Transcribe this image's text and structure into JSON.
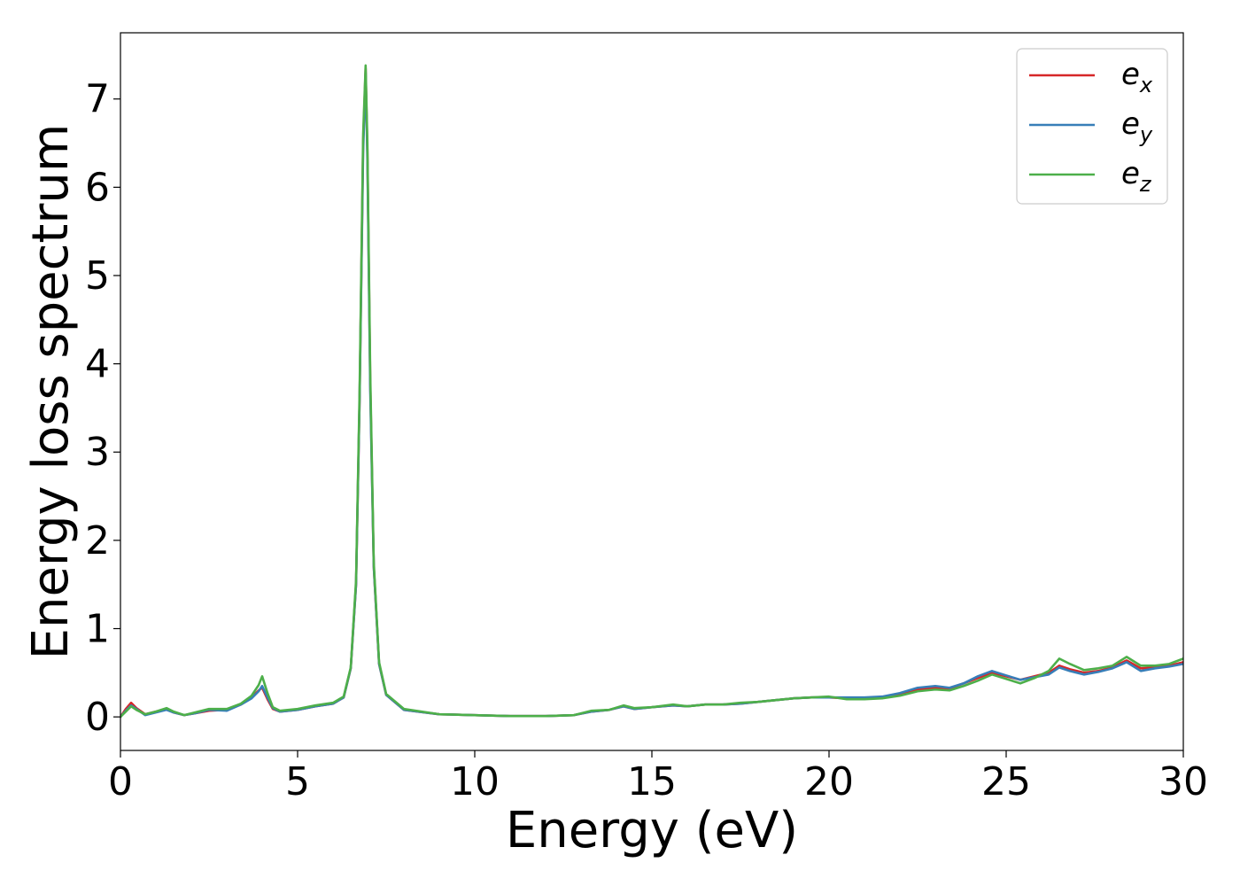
{
  "chart_data": {
    "type": "line",
    "xlabel": "Energy (eV)",
    "ylabel": "Energy loss spectrum",
    "xlim": [
      0,
      30
    ],
    "ylim": [
      -0.38,
      7.75
    ],
    "xticks": [
      0,
      5,
      10,
      15,
      20,
      25,
      30
    ],
    "yticks": [
      0,
      1,
      2,
      3,
      4,
      5,
      6,
      7
    ],
    "grid": false,
    "legend_position": "top-right",
    "series": [
      {
        "name": "e_x",
        "legend_base": "e",
        "legend_sub": "x",
        "color": "#d62728",
        "points": [
          [
            0,
            0.0
          ],
          [
            0.15,
            0.09
          ],
          [
            0.3,
            0.16
          ],
          [
            0.45,
            0.1
          ],
          [
            0.7,
            0.03
          ],
          [
            1.0,
            0.06
          ],
          [
            1.3,
            0.09
          ],
          [
            1.5,
            0.05
          ],
          [
            1.8,
            0.02
          ],
          [
            2.1,
            0.04
          ],
          [
            2.5,
            0.07
          ],
          [
            3.0,
            0.08
          ],
          [
            3.4,
            0.14
          ],
          [
            3.7,
            0.22
          ],
          [
            3.9,
            0.3
          ],
          [
            4.0,
            0.33
          ],
          [
            4.15,
            0.2
          ],
          [
            4.3,
            0.09
          ],
          [
            4.5,
            0.06
          ],
          [
            5.0,
            0.08
          ],
          [
            5.5,
            0.12
          ],
          [
            6.0,
            0.15
          ],
          [
            6.3,
            0.22
          ],
          [
            6.5,
            0.55
          ],
          [
            6.65,
            1.5
          ],
          [
            6.75,
            3.6
          ],
          [
            6.85,
            6.5
          ],
          [
            6.92,
            7.35
          ],
          [
            6.97,
            6.4
          ],
          [
            7.05,
            3.8
          ],
          [
            7.15,
            1.7
          ],
          [
            7.3,
            0.6
          ],
          [
            7.5,
            0.25
          ],
          [
            8.0,
            0.08
          ],
          [
            9.0,
            0.03
          ],
          [
            10.0,
            0.02
          ],
          [
            11.0,
            0.01
          ],
          [
            12.0,
            0.01
          ],
          [
            12.8,
            0.02
          ],
          [
            13.3,
            0.06
          ],
          [
            13.8,
            0.08
          ],
          [
            14.2,
            0.12
          ],
          [
            14.5,
            0.09
          ],
          [
            15.0,
            0.11
          ],
          [
            15.6,
            0.13
          ],
          [
            16.0,
            0.12
          ],
          [
            16.5,
            0.14
          ],
          [
            17.0,
            0.14
          ],
          [
            17.5,
            0.15
          ],
          [
            18.0,
            0.17
          ],
          [
            18.5,
            0.19
          ],
          [
            19.0,
            0.21
          ],
          [
            19.5,
            0.22
          ],
          [
            20.0,
            0.22
          ],
          [
            20.5,
            0.21
          ],
          [
            21.0,
            0.21
          ],
          [
            21.5,
            0.22
          ],
          [
            22.0,
            0.26
          ],
          [
            22.5,
            0.31
          ],
          [
            23.0,
            0.33
          ],
          [
            23.4,
            0.32
          ],
          [
            23.8,
            0.38
          ],
          [
            24.2,
            0.44
          ],
          [
            24.6,
            0.5
          ],
          [
            25.0,
            0.46
          ],
          [
            25.4,
            0.42
          ],
          [
            25.8,
            0.46
          ],
          [
            26.2,
            0.5
          ],
          [
            26.5,
            0.58
          ],
          [
            26.8,
            0.54
          ],
          [
            27.2,
            0.5
          ],
          [
            27.6,
            0.52
          ],
          [
            28.0,
            0.56
          ],
          [
            28.4,
            0.64
          ],
          [
            28.8,
            0.55
          ],
          [
            29.2,
            0.56
          ],
          [
            29.6,
            0.58
          ],
          [
            30.0,
            0.62
          ]
        ]
      },
      {
        "name": "e_y",
        "legend_base": "e",
        "legend_sub": "y",
        "color": "#377eb8",
        "points": [
          [
            0,
            0.0
          ],
          [
            0.15,
            0.07
          ],
          [
            0.3,
            0.13
          ],
          [
            0.45,
            0.09
          ],
          [
            0.7,
            0.02
          ],
          [
            1.0,
            0.05
          ],
          [
            1.3,
            0.08
          ],
          [
            1.5,
            0.05
          ],
          [
            1.8,
            0.02
          ],
          [
            2.1,
            0.04
          ],
          [
            2.5,
            0.08
          ],
          [
            3.0,
            0.07
          ],
          [
            3.4,
            0.14
          ],
          [
            3.7,
            0.21
          ],
          [
            3.9,
            0.29
          ],
          [
            4.0,
            0.35
          ],
          [
            4.15,
            0.22
          ],
          [
            4.3,
            0.1
          ],
          [
            4.5,
            0.06
          ],
          [
            5.0,
            0.08
          ],
          [
            5.5,
            0.12
          ],
          [
            6.0,
            0.15
          ],
          [
            6.3,
            0.22
          ],
          [
            6.5,
            0.55
          ],
          [
            6.65,
            1.5
          ],
          [
            6.75,
            3.6
          ],
          [
            6.85,
            6.4
          ],
          [
            6.92,
            7.3
          ],
          [
            6.97,
            6.3
          ],
          [
            7.05,
            3.7
          ],
          [
            7.15,
            1.7
          ],
          [
            7.3,
            0.6
          ],
          [
            7.5,
            0.25
          ],
          [
            8.0,
            0.08
          ],
          [
            9.0,
            0.03
          ],
          [
            10.0,
            0.02
          ],
          [
            11.0,
            0.01
          ],
          [
            12.0,
            0.01
          ],
          [
            12.8,
            0.02
          ],
          [
            13.3,
            0.06
          ],
          [
            13.8,
            0.08
          ],
          [
            14.2,
            0.12
          ],
          [
            14.5,
            0.09
          ],
          [
            15.0,
            0.11
          ],
          [
            15.6,
            0.13
          ],
          [
            16.0,
            0.12
          ],
          [
            16.5,
            0.14
          ],
          [
            17.0,
            0.14
          ],
          [
            17.5,
            0.15
          ],
          [
            18.0,
            0.17
          ],
          [
            18.5,
            0.19
          ],
          [
            19.0,
            0.21
          ],
          [
            19.5,
            0.22
          ],
          [
            20.0,
            0.22
          ],
          [
            20.5,
            0.22
          ],
          [
            21.0,
            0.22
          ],
          [
            21.5,
            0.23
          ],
          [
            22.0,
            0.27
          ],
          [
            22.5,
            0.33
          ],
          [
            23.0,
            0.35
          ],
          [
            23.4,
            0.33
          ],
          [
            23.8,
            0.38
          ],
          [
            24.2,
            0.46
          ],
          [
            24.6,
            0.52
          ],
          [
            25.0,
            0.47
          ],
          [
            25.4,
            0.42
          ],
          [
            25.8,
            0.45
          ],
          [
            26.2,
            0.48
          ],
          [
            26.5,
            0.56
          ],
          [
            26.8,
            0.52
          ],
          [
            27.2,
            0.48
          ],
          [
            27.6,
            0.51
          ],
          [
            28.0,
            0.55
          ],
          [
            28.4,
            0.62
          ],
          [
            28.8,
            0.52
          ],
          [
            29.2,
            0.55
          ],
          [
            29.6,
            0.57
          ],
          [
            30.0,
            0.6
          ]
        ]
      },
      {
        "name": "e_z",
        "legend_base": "e",
        "legend_sub": "z",
        "color": "#4daf4a",
        "points": [
          [
            0,
            0.0
          ],
          [
            0.15,
            0.06
          ],
          [
            0.3,
            0.12
          ],
          [
            0.45,
            0.08
          ],
          [
            0.7,
            0.03
          ],
          [
            1.0,
            0.06
          ],
          [
            1.3,
            0.1
          ],
          [
            1.5,
            0.06
          ],
          [
            1.8,
            0.02
          ],
          [
            2.1,
            0.05
          ],
          [
            2.5,
            0.09
          ],
          [
            3.0,
            0.09
          ],
          [
            3.4,
            0.15
          ],
          [
            3.7,
            0.24
          ],
          [
            3.9,
            0.36
          ],
          [
            4.0,
            0.46
          ],
          [
            4.15,
            0.27
          ],
          [
            4.3,
            0.11
          ],
          [
            4.5,
            0.07
          ],
          [
            5.0,
            0.09
          ],
          [
            5.5,
            0.13
          ],
          [
            6.0,
            0.16
          ],
          [
            6.3,
            0.23
          ],
          [
            6.5,
            0.56
          ],
          [
            6.65,
            1.55
          ],
          [
            6.75,
            3.7
          ],
          [
            6.85,
            6.6
          ],
          [
            6.92,
            7.38
          ],
          [
            6.97,
            6.5
          ],
          [
            7.05,
            3.9
          ],
          [
            7.15,
            1.75
          ],
          [
            7.3,
            0.62
          ],
          [
            7.5,
            0.26
          ],
          [
            8.0,
            0.09
          ],
          [
            9.0,
            0.03
          ],
          [
            10.0,
            0.02
          ],
          [
            11.0,
            0.01
          ],
          [
            12.0,
            0.01
          ],
          [
            12.8,
            0.02
          ],
          [
            13.3,
            0.07
          ],
          [
            13.8,
            0.08
          ],
          [
            14.2,
            0.13
          ],
          [
            14.5,
            0.1
          ],
          [
            15.0,
            0.11
          ],
          [
            15.6,
            0.14
          ],
          [
            16.0,
            0.12
          ],
          [
            16.5,
            0.14
          ],
          [
            17.0,
            0.14
          ],
          [
            17.5,
            0.16
          ],
          [
            18.0,
            0.17
          ],
          [
            18.5,
            0.19
          ],
          [
            19.0,
            0.21
          ],
          [
            19.5,
            0.22
          ],
          [
            20.0,
            0.23
          ],
          [
            20.5,
            0.2
          ],
          [
            21.0,
            0.2
          ],
          [
            21.5,
            0.21
          ],
          [
            22.0,
            0.24
          ],
          [
            22.5,
            0.29
          ],
          [
            23.0,
            0.31
          ],
          [
            23.4,
            0.3
          ],
          [
            23.8,
            0.35
          ],
          [
            24.2,
            0.41
          ],
          [
            24.6,
            0.48
          ],
          [
            25.0,
            0.43
          ],
          [
            25.4,
            0.38
          ],
          [
            25.8,
            0.44
          ],
          [
            26.2,
            0.52
          ],
          [
            26.5,
            0.66
          ],
          [
            26.8,
            0.6
          ],
          [
            27.2,
            0.53
          ],
          [
            27.6,
            0.55
          ],
          [
            28.0,
            0.58
          ],
          [
            28.4,
            0.68
          ],
          [
            28.8,
            0.58
          ],
          [
            29.2,
            0.58
          ],
          [
            29.6,
            0.6
          ],
          [
            30.0,
            0.66
          ]
        ]
      }
    ]
  }
}
